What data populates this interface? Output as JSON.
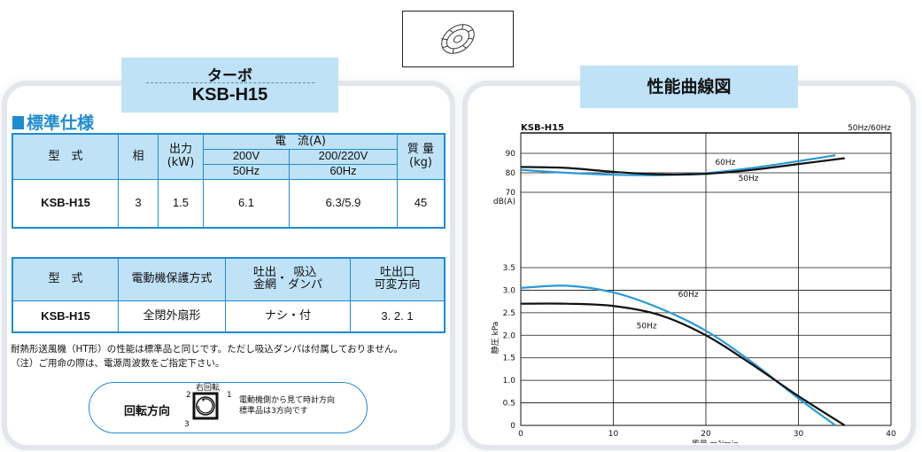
{
  "product_tab": {
    "type": "ターボ",
    "model": "KSB-H15"
  },
  "performance_tab": {
    "title": "性能曲線図"
  },
  "spec_section": {
    "title": "標準仕様"
  },
  "table1": {
    "h_model": "型　式",
    "h_phase": "相",
    "h_output": "出力",
    "h_output_unit": "(kW)",
    "h_current": "電　流(A)",
    "h_200v": "200V",
    "h_200_220v": "200/220V",
    "h_50hz": "50Hz",
    "h_60hz": "60Hz",
    "h_mass": "質 量",
    "h_mass_unit": "(kg)",
    "row": {
      "model": "KSB-H15",
      "phase": "3",
      "output": "1.5",
      "current_50": "6.1",
      "current_60": "6.3/5.9",
      "mass": "45"
    }
  },
  "table2": {
    "h_model": "型　式",
    "h_protection": "電動機保護方式",
    "h_outlet_1": "吐出",
    "h_outlet_2": "金網",
    "h_dot": "・",
    "h_inlet_1": "吸込",
    "h_inlet_2": "ダンパ",
    "h_dir_1": "吐出口",
    "h_dir_2": "可変方向",
    "row": {
      "model": "KSB-H15",
      "protection": "全閉外扇形",
      "options": "ナシ・付",
      "directions": "3. 2. 1"
    }
  },
  "notes": [
    "耐熱形送風機（HT形）の性能は標準品と同じです。ただし吸込ダンパは付属しておりません。",
    "（注）ご用命の際は、電源周波数をご指定下さい。"
  ],
  "rotation": {
    "label": "回転方向",
    "direction": "右回転",
    "pos_1": "1",
    "pos_2": "2",
    "pos_3": "3",
    "note_1": "電動機側から見て時計方向",
    "note_2": "標準品は3方向です"
  },
  "chart_data": {
    "type": "line",
    "title": "KSB-H15",
    "top_right_label": "50Hz/60Hz",
    "xlabel": "風量 m³/min",
    "xlim": [
      0,
      40
    ],
    "x_ticks": [
      0,
      10,
      20,
      30,
      40
    ],
    "noise_panel": {
      "ylabel": "dB(A)",
      "ylim": [
        70,
        90
      ],
      "y_ticks": [
        70,
        80,
        90
      ],
      "series": [
        {
          "name": "60Hz",
          "color": "#2a9ad6",
          "x": [
            0,
            5,
            10,
            15,
            20,
            25,
            30,
            34
          ],
          "y": [
            81.5,
            80.0,
            79.0,
            78.8,
            79.8,
            82.5,
            86.0,
            89.0
          ]
        },
        {
          "name": "50Hz",
          "color": "#111111",
          "x": [
            0,
            5,
            10,
            15,
            20,
            25,
            30,
            35
          ],
          "y": [
            83.0,
            82.5,
            80.5,
            79.2,
            79.5,
            81.5,
            84.5,
            87.5
          ]
        }
      ]
    },
    "pressure_panel": {
      "ylabel": "静圧 kPa",
      "ylim": [
        0,
        3.5
      ],
      "y_ticks": [
        0,
        0.5,
        1.0,
        1.5,
        2.0,
        2.5,
        3.0,
        3.5
      ],
      "series": [
        {
          "name": "60Hz",
          "color": "#2a9ad6",
          "x": [
            0,
            5,
            10,
            15,
            20,
            25,
            30,
            34
          ],
          "y": [
            3.05,
            3.1,
            2.95,
            2.6,
            2.1,
            1.4,
            0.6,
            0.0
          ]
        },
        {
          "name": "50Hz",
          "color": "#111111",
          "x": [
            0,
            5,
            10,
            15,
            20,
            25,
            30,
            35
          ],
          "y": [
            2.7,
            2.7,
            2.65,
            2.45,
            2.0,
            1.35,
            0.65,
            0.0
          ]
        }
      ]
    }
  }
}
